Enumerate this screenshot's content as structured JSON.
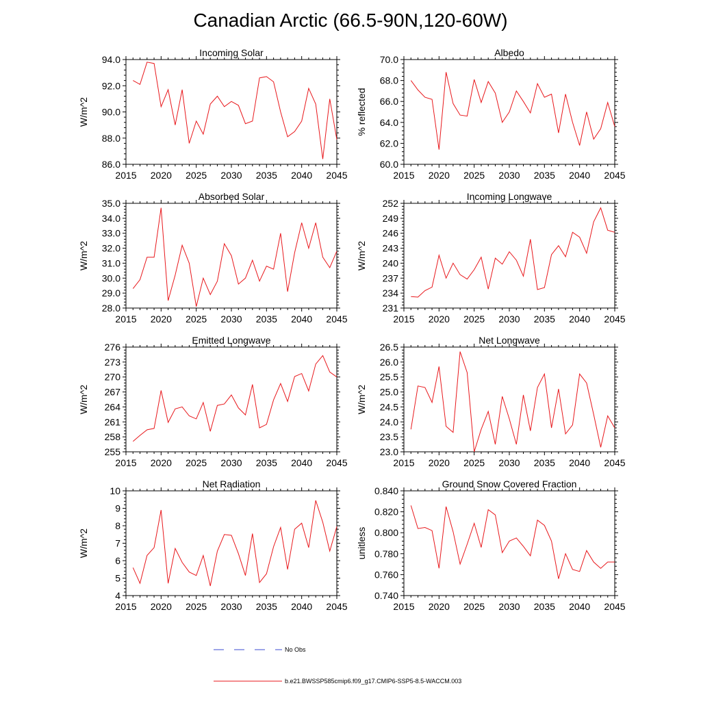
{
  "title": "Canadian Arctic (66.5-90N,120-60W)",
  "legend": {
    "obs_label": "No Obs",
    "obs_color": "#3b4bd1",
    "model_label": "b.e21.BWSSP585cmip6.f09_g17.CMIP6-SSP5-8.5-WACCM.003",
    "model_color": "#e8171b"
  },
  "chart_data": [
    {
      "type": "line",
      "title": "Incoming Solar",
      "ylabel": "W/m^2",
      "xlim": [
        2015,
        2045
      ],
      "ylim": [
        86.0,
        94.0
      ],
      "yticks": [
        86.0,
        88.0,
        90.0,
        92.0,
        94.0
      ],
      "ytick_labels": [
        "86.0",
        "88.0",
        "90.0",
        "92.0",
        "94.0"
      ],
      "xticks": [
        2015,
        2020,
        2025,
        2030,
        2035,
        2040,
        2045
      ],
      "xtick_labels": [
        "2015",
        "2020",
        "2025",
        "2030",
        "2035",
        "2040",
        "2045"
      ],
      "series": [
        {
          "name": "b.e21.BWSSP585cmip6.f09_g17.CMIP6-SSP5-8.5-WACCM.003",
          "x": [
            2016,
            2017,
            2018,
            2019,
            2020,
            2021,
            2022,
            2023,
            2024,
            2025,
            2026,
            2027,
            2028,
            2029,
            2030,
            2031,
            2032,
            2033,
            2034,
            2035,
            2036,
            2037,
            2038,
            2039,
            2040,
            2041,
            2042,
            2043,
            2044,
            2045
          ],
          "y": [
            92.4,
            92.1,
            93.8,
            93.7,
            90.4,
            91.7,
            89.0,
            91.7,
            87.6,
            89.3,
            88.3,
            90.6,
            91.2,
            90.4,
            90.8,
            90.5,
            89.1,
            89.3,
            92.6,
            92.7,
            92.3,
            90.0,
            88.1,
            88.5,
            89.3,
            91.8,
            90.6,
            86.4,
            91.0,
            87.9
          ]
        }
      ]
    },
    {
      "type": "line",
      "title": "Albedo",
      "ylabel": "% reflected",
      "xlim": [
        2015,
        2045
      ],
      "ylim": [
        60.0,
        70.0
      ],
      "yticks": [
        60.0,
        62.0,
        64.0,
        66.0,
        68.0,
        70.0
      ],
      "ytick_labels": [
        "60.0",
        "62.0",
        "64.0",
        "66.0",
        "68.0",
        "70.0"
      ],
      "xticks": [
        2015,
        2020,
        2025,
        2030,
        2035,
        2040,
        2045
      ],
      "xtick_labels": [
        "2015",
        "2020",
        "2025",
        "2030",
        "2035",
        "2040",
        "2045"
      ],
      "series": [
        {
          "name": "b.e21.BWSSP585cmip6.f09_g17.CMIP6-SSP5-8.5-WACCM.003",
          "x": [
            2016,
            2017,
            2018,
            2019,
            2020,
            2021,
            2022,
            2023,
            2024,
            2025,
            2026,
            2027,
            2028,
            2029,
            2030,
            2031,
            2032,
            2033,
            2034,
            2035,
            2036,
            2037,
            2038,
            2039,
            2040,
            2041,
            2042,
            2043,
            2044,
            2045
          ],
          "y": [
            68.0,
            67.1,
            66.4,
            66.2,
            61.4,
            68.8,
            65.8,
            64.7,
            64.6,
            68.1,
            65.9,
            67.9,
            66.8,
            64.0,
            65.0,
            67.0,
            66.0,
            64.9,
            67.7,
            66.4,
            66.7,
            63.0,
            66.7,
            64.0,
            61.8,
            65.0,
            62.4,
            63.4,
            65.9,
            63.6
          ]
        }
      ]
    },
    {
      "type": "line",
      "title": "Absorbed Solar",
      "ylabel": "W/m^2",
      "xlim": [
        2015,
        2045
      ],
      "ylim": [
        28.0,
        35.0
      ],
      "yticks": [
        28.0,
        29.0,
        30.0,
        31.0,
        32.0,
        33.0,
        34.0,
        35.0
      ],
      "ytick_labels": [
        "28.0",
        "29.0",
        "30.0",
        "31.0",
        "32.0",
        "33.0",
        "34.0",
        "35.0"
      ],
      "xticks": [
        2015,
        2020,
        2025,
        2030,
        2035,
        2040,
        2045
      ],
      "xtick_labels": [
        "2015",
        "2020",
        "2025",
        "2030",
        "2035",
        "2040",
        "2045"
      ],
      "series": [
        {
          "name": "b.e21.BWSSP585cmip6.f09_g17.CMIP6-SSP5-8.5-WACCM.003",
          "x": [
            2016,
            2017,
            2018,
            2019,
            2020,
            2021,
            2022,
            2023,
            2024,
            2025,
            2026,
            2027,
            2028,
            2029,
            2030,
            2031,
            2032,
            2033,
            2034,
            2035,
            2036,
            2037,
            2038,
            2039,
            2040,
            2041,
            2042,
            2043,
            2044,
            2045
          ],
          "y": [
            29.3,
            29.9,
            31.4,
            31.4,
            34.7,
            28.5,
            30.2,
            32.2,
            31.0,
            28.1,
            30.0,
            28.9,
            29.8,
            32.3,
            31.5,
            29.6,
            30.0,
            31.2,
            29.8,
            30.8,
            30.6,
            33.0,
            29.1,
            31.7,
            33.7,
            32.0,
            33.7,
            31.4,
            30.7,
            31.8
          ]
        }
      ]
    },
    {
      "type": "line",
      "title": "Incoming Longwave",
      "ylabel": "W/m^2",
      "xlim": [
        2015,
        2045
      ],
      "ylim": [
        231,
        252
      ],
      "yticks": [
        231,
        234,
        237,
        240,
        243,
        246,
        249,
        252
      ],
      "ytick_labels": [
        "231",
        "234",
        "237",
        "240",
        "243",
        "246",
        "249",
        "252"
      ],
      "xticks": [
        2015,
        2020,
        2025,
        2030,
        2035,
        2040,
        2045
      ],
      "xtick_labels": [
        "2015",
        "2020",
        "2025",
        "2030",
        "2035",
        "2040",
        "2045"
      ],
      "series": [
        {
          "name": "b.e21.BWSSP585cmip6.f09_g17.CMIP6-SSP5-8.5-WACCM.003",
          "x": [
            2016,
            2017,
            2018,
            2019,
            2020,
            2021,
            2022,
            2023,
            2024,
            2025,
            2026,
            2027,
            2028,
            2029,
            2030,
            2031,
            2032,
            2033,
            2034,
            2035,
            2036,
            2037,
            2038,
            2039,
            2040,
            2041,
            2042,
            2043,
            2044,
            2045
          ],
          "y": [
            233.3,
            233.2,
            234.5,
            235.2,
            241.6,
            237.0,
            240.0,
            237.7,
            236.8,
            238.7,
            241.2,
            234.8,
            241.0,
            239.8,
            242.3,
            240.6,
            237.4,
            244.8,
            234.7,
            235.1,
            241.7,
            243.5,
            241.3,
            246.2,
            245.2,
            242.0,
            248.3,
            251.1,
            246.6,
            246.2
          ]
        }
      ]
    },
    {
      "type": "line",
      "title": "Emitted Longwave",
      "ylabel": "W/m^2",
      "xlim": [
        2015,
        2045
      ],
      "ylim": [
        255,
        276
      ],
      "yticks": [
        255,
        258,
        261,
        264,
        267,
        270,
        273,
        276
      ],
      "ytick_labels": [
        "255",
        "258",
        "261",
        "264",
        "267",
        "270",
        "273",
        "276"
      ],
      "xticks": [
        2015,
        2020,
        2025,
        2030,
        2035,
        2040,
        2045
      ],
      "xtick_labels": [
        "2015",
        "2020",
        "2025",
        "2030",
        "2035",
        "2040",
        "2045"
      ],
      "series": [
        {
          "name": "b.e21.BWSSP585cmip6.f09_g17.CMIP6-SSP5-8.5-WACCM.003",
          "x": [
            2016,
            2017,
            2018,
            2019,
            2020,
            2021,
            2022,
            2023,
            2024,
            2025,
            2026,
            2027,
            2028,
            2029,
            2030,
            2031,
            2032,
            2033,
            2034,
            2035,
            2036,
            2037,
            2038,
            2039,
            2040,
            2041,
            2042,
            2043,
            2044,
            2045
          ],
          "y": [
            257.1,
            258.3,
            259.4,
            259.7,
            267.3,
            260.9,
            263.6,
            264.0,
            262.2,
            261.6,
            264.9,
            259.1,
            264.3,
            264.6,
            266.4,
            263.8,
            262.4,
            268.5,
            259.8,
            260.5,
            265.4,
            268.7,
            265.1,
            270.1,
            270.7,
            267.2,
            272.6,
            274.3,
            271.0,
            270.0
          ]
        }
      ]
    },
    {
      "type": "line",
      "title": "Net Longwave",
      "ylabel": "W/m^2",
      "xlim": [
        2015,
        2045
      ],
      "ylim": [
        23.0,
        26.5
      ],
      "yticks": [
        23.0,
        23.5,
        24.0,
        24.5,
        25.0,
        25.5,
        26.0,
        26.5
      ],
      "ytick_labels": [
        "23.0",
        "23.5",
        "24.0",
        "24.5",
        "25.0",
        "25.5",
        "26.0",
        "26.5"
      ],
      "xticks": [
        2015,
        2020,
        2025,
        2030,
        2035,
        2040,
        2045
      ],
      "xtick_labels": [
        "2015",
        "2020",
        "2025",
        "2030",
        "2035",
        "2040",
        "2045"
      ],
      "series": [
        {
          "name": "b.e21.BWSSP585cmip6.f09_g17.CMIP6-SSP5-8.5-WACCM.003",
          "x": [
            2016,
            2017,
            2018,
            2019,
            2020,
            2021,
            2022,
            2023,
            2024,
            2025,
            2026,
            2027,
            2028,
            2029,
            2030,
            2031,
            2032,
            2033,
            2034,
            2035,
            2036,
            2037,
            2038,
            2039,
            2040,
            2041,
            2042,
            2043,
            2044,
            2045
          ],
          "y": [
            23.75,
            25.2,
            25.15,
            24.65,
            25.85,
            23.85,
            23.65,
            26.35,
            25.65,
            23.0,
            23.75,
            24.35,
            23.25,
            24.85,
            24.1,
            23.25,
            24.9,
            23.7,
            25.15,
            25.6,
            23.8,
            25.1,
            23.6,
            23.9,
            25.6,
            25.3,
            24.25,
            23.15,
            24.2,
            23.8
          ]
        }
      ]
    },
    {
      "type": "line",
      "title": "Net Radiation",
      "ylabel": "W/m^2",
      "xlim": [
        2015,
        2045
      ],
      "ylim": [
        4,
        10
      ],
      "yticks": [
        4,
        5,
        6,
        7,
        8,
        9,
        10
      ],
      "ytick_labels": [
        "4",
        "5",
        "6",
        "7",
        "8",
        "9",
        "10"
      ],
      "xticks": [
        2015,
        2020,
        2025,
        2030,
        2035,
        2040,
        2045
      ],
      "xtick_labels": [
        "2015",
        "2020",
        "2025",
        "2030",
        "2035",
        "2040",
        "2045"
      ],
      "series": [
        {
          "name": "b.e21.BWSSP585cmip6.f09_g17.CMIP6-SSP5-8.5-WACCM.003",
          "x": [
            2016,
            2017,
            2018,
            2019,
            2020,
            2021,
            2022,
            2023,
            2024,
            2025,
            2026,
            2027,
            2028,
            2029,
            2030,
            2031,
            2032,
            2033,
            2034,
            2035,
            2036,
            2037,
            2038,
            2039,
            2040,
            2041,
            2042,
            2043,
            2044,
            2045
          ],
          "y": [
            5.6,
            4.7,
            6.3,
            6.75,
            8.9,
            4.7,
            6.7,
            5.9,
            5.35,
            5.15,
            6.3,
            4.55,
            6.55,
            7.5,
            7.45,
            6.4,
            5.15,
            7.55,
            4.75,
            5.25,
            6.8,
            7.9,
            5.5,
            7.8,
            8.15,
            6.75,
            9.45,
            8.2,
            6.55,
            7.95
          ]
        }
      ]
    },
    {
      "type": "line",
      "title": "Ground Snow Covered Fraction",
      "ylabel": "unitless",
      "xlim": [
        2015,
        2045
      ],
      "ylim": [
        0.74,
        0.84
      ],
      "yticks": [
        0.74,
        0.76,
        0.78,
        0.8,
        0.82,
        0.84
      ],
      "ytick_labels": [
        "0.740",
        "0.760",
        "0.780",
        "0.800",
        "0.820",
        "0.840"
      ],
      "xticks": [
        2015,
        2020,
        2025,
        2030,
        2035,
        2040,
        2045
      ],
      "xtick_labels": [
        "2015",
        "2020",
        "2025",
        "2030",
        "2035",
        "2040",
        "2045"
      ],
      "series": [
        {
          "name": "b.e21.BWSSP585cmip6.f09_g17.CMIP6-SSP5-8.5-WACCM.003",
          "x": [
            2016,
            2017,
            2018,
            2019,
            2020,
            2021,
            2022,
            2023,
            2024,
            2025,
            2026,
            2027,
            2028,
            2029,
            2030,
            2031,
            2032,
            2033,
            2034,
            2035,
            2036,
            2037,
            2038,
            2039,
            2040,
            2041,
            2042,
            2043,
            2044,
            2045
          ],
          "y": [
            0.826,
            0.804,
            0.805,
            0.802,
            0.766,
            0.825,
            0.801,
            0.77,
            0.789,
            0.809,
            0.786,
            0.822,
            0.817,
            0.781,
            0.792,
            0.795,
            0.787,
            0.778,
            0.812,
            0.807,
            0.792,
            0.756,
            0.78,
            0.765,
            0.763,
            0.783,
            0.772,
            0.766,
            0.772,
            0.772
          ]
        }
      ]
    }
  ]
}
